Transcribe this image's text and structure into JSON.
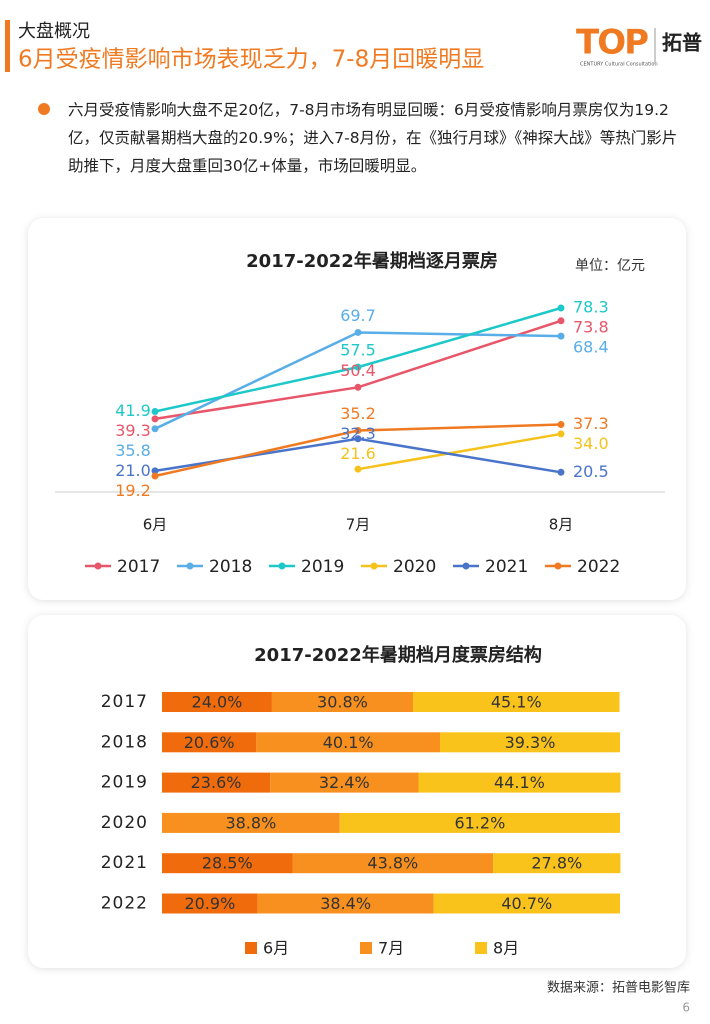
{
  "header": {
    "section": "大盘概况",
    "title": "6月受疫情影响市场表现乏力，7-8月回暖明显"
  },
  "logo": {
    "text": "TOP",
    "name": "拓普",
    "tagline": "CENTURY Cultural Consultation"
  },
  "bullet": "六月受疫情影响大盘不足20亿，7-8月市场有明显回暖：6月受疫情影响月票房仅为19.2亿，仅贡献暑期档大盘的20.9%；进入7-8月份，在《独行月球》《神探大战》等热门影片助推下，月度大盘重回30亿+体量，市场回暖明显。",
  "chart_data": [
    {
      "type": "line",
      "title": "2017-2022年暑期档逐月票房",
      "unit": "单位：亿元",
      "categories": [
        "6月",
        "7月",
        "8月"
      ],
      "series": [
        {
          "name": "2017",
          "color": "#e8566a",
          "values": [
            39.3,
            50.4,
            73.8
          ],
          "value_labels": [
            "39.3",
            "50.4",
            "73.8"
          ]
        },
        {
          "name": "2018",
          "color": "#5aaee8",
          "values": [
            35.8,
            69.7,
            68.4
          ],
          "value_labels": [
            "35.8",
            "69.7",
            "68.4"
          ]
        },
        {
          "name": "2019",
          "color": "#1ec8c8",
          "values": [
            41.9,
            57.5,
            78.3
          ],
          "value_labels": [
            "41.9",
            "57.5",
            "78.3"
          ]
        },
        {
          "name": "2020",
          "color": "#f5c21b",
          "values": [
            null,
            21.6,
            34.0
          ],
          "value_labels": [
            null,
            "21.6",
            "34.0"
          ]
        },
        {
          "name": "2021",
          "color": "#4a74c9",
          "values": [
            21.0,
            32.3,
            20.5
          ],
          "value_labels": [
            "21.0",
            "32.3",
            "20.5"
          ]
        },
        {
          "name": "2022",
          "color": "#f07a22",
          "values": [
            19.2,
            35.2,
            37.3
          ],
          "value_labels": [
            "19.2",
            "35.2",
            "37.3"
          ]
        }
      ],
      "legend": "bottom"
    },
    {
      "type": "bar",
      "orientation": "horizontal",
      "stacked": true,
      "title": "2017-2022年暑期档月度票房结构",
      "categories": [
        "2017",
        "2018",
        "2019",
        "2020",
        "2021",
        "2022"
      ],
      "xlim": [
        0,
        100
      ],
      "series": [
        {
          "name": "6月",
          "color": "#f06b0c",
          "values": [
            24.0,
            20.6,
            23.6,
            null,
            28.5,
            20.9
          ],
          "value_labels": [
            "24.0%",
            "20.6%",
            "23.6%",
            null,
            "28.5%",
            "20.9%"
          ]
        },
        {
          "name": "7月",
          "color": "#f7901e",
          "values": [
            30.8,
            40.1,
            32.4,
            38.8,
            43.8,
            38.4
          ],
          "value_labels": [
            "30.8%",
            "40.1%",
            "32.4%",
            "38.8%",
            "43.8%",
            "38.4%"
          ]
        },
        {
          "name": "8月",
          "color": "#fac31c",
          "values": [
            45.1,
            39.3,
            44.1,
            61.2,
            27.8,
            40.7
          ],
          "value_labels": [
            "45.1%",
            "39.3%",
            "44.1%",
            "61.2%",
            "27.8%",
            "40.7%"
          ]
        }
      ],
      "legend": "bottom"
    }
  ],
  "footer": {
    "source": "数据来源：拓普电影智库",
    "page": "6"
  }
}
